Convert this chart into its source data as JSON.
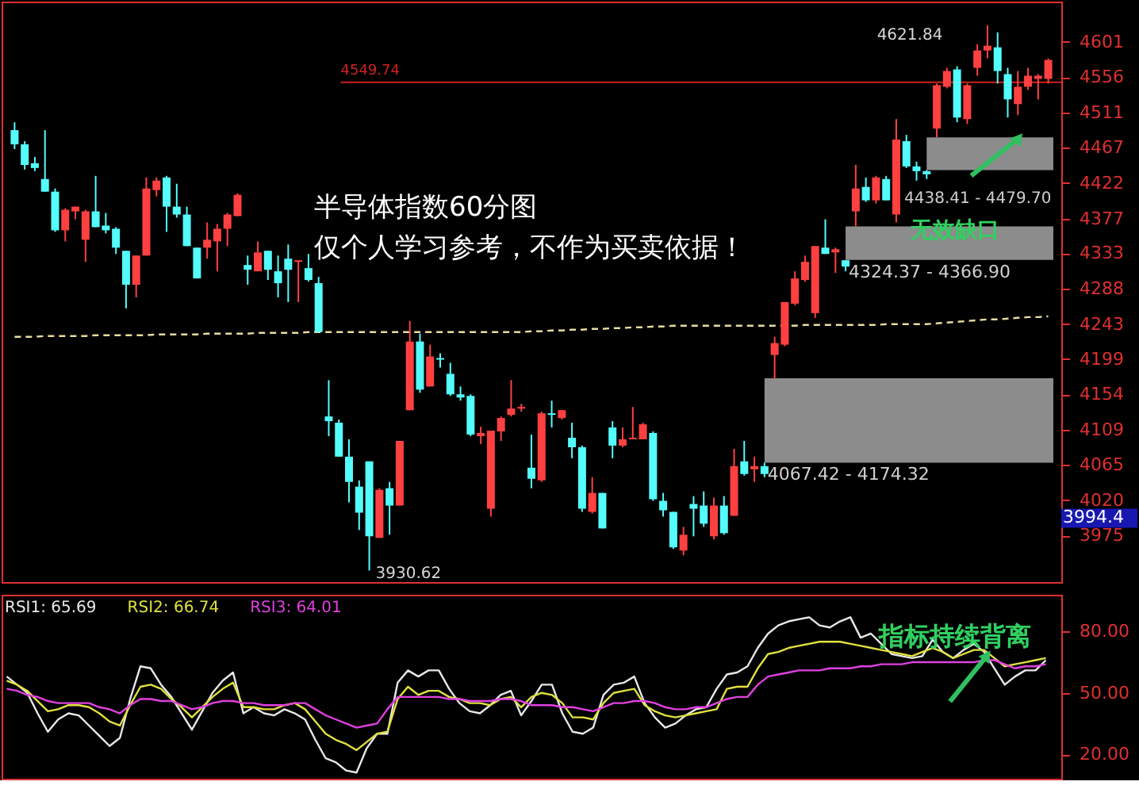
{
  "chart_data": [
    {
      "type": "candlestick",
      "categories": [
        null,
        null,
        null,
        null,
        null,
        null,
        null,
        null,
        null,
        null,
        null,
        null,
        null,
        null,
        null,
        null,
        null,
        null,
        null,
        null,
        null,
        null,
        null,
        null,
        null,
        null,
        null,
        null,
        null,
        null,
        null,
        null,
        null,
        null,
        null,
        null,
        null,
        null,
        null,
        null,
        null,
        null,
        null,
        null,
        null,
        null,
        null,
        null,
        null,
        null,
        null,
        null,
        null,
        null,
        null,
        null,
        null,
        null,
        null,
        null,
        null,
        null,
        null,
        null,
        null,
        null,
        null,
        null,
        null,
        null,
        null,
        null,
        null,
        null,
        null,
        null,
        null,
        null,
        null,
        null,
        null,
        null,
        null,
        null,
        null,
        null,
        null,
        null,
        null,
        null,
        null,
        null,
        null,
        null,
        null,
        null,
        null,
        null,
        null,
        null,
        null,
        null,
        null
      ],
      "ohlc": [
        [
          4489,
          4499,
          4465,
          4471
        ],
        [
          4471,
          4475,
          4439,
          4445
        ],
        [
          4447,
          4455,
          4437,
          4441
        ],
        [
          4427,
          4489,
          4411,
          4411
        ],
        [
          4411,
          4415,
          4360,
          4362
        ],
        [
          4362,
          4390,
          4348,
          4388
        ],
        [
          4386,
          4392,
          4376,
          4392
        ],
        [
          4350,
          4388,
          4322,
          4386
        ],
        [
          4386,
          4431,
          4366,
          4366
        ],
        [
          4368,
          4384,
          4358,
          4362
        ],
        [
          4364,
          4366,
          4332,
          4340
        ],
        [
          4336,
          4336,
          4263,
          4293
        ],
        [
          4293,
          4330,
          4277,
          4330
        ],
        [
          4330,
          4429,
          4330,
          4415
        ],
        [
          4413,
          4429,
          4405,
          4425
        ],
        [
          4429,
          4431,
          4360,
          4392
        ],
        [
          4392,
          4421,
          4378,
          4382
        ],
        [
          4382,
          4392,
          4342,
          4342
        ],
        [
          4340,
          4340,
          4301,
          4301
        ],
        [
          4340,
          4372,
          4326,
          4350
        ],
        [
          4348,
          4370,
          4310,
          4364
        ],
        [
          4364,
          4384,
          4342,
          4382
        ],
        [
          4380,
          4409,
          4380,
          4407
        ],
        [
          4318,
          4330,
          4293,
          4312
        ],
        [
          4310,
          4348,
          4310,
          4334
        ],
        [
          4336,
          4336,
          4299,
          4312
        ],
        [
          4310,
          4330,
          4277,
          4295
        ],
        [
          4326,
          4344,
          4271,
          4312
        ],
        [
          4322,
          4324,
          4271,
          4324
        ],
        [
          4314,
          4332,
          4297,
          4299
        ],
        [
          4295,
          4303,
          4233,
          4233
        ],
        [
          4126,
          4172,
          4101,
          4120
        ],
        [
          4118,
          4122,
          4075,
          4075
        ],
        [
          4075,
          4097,
          4017,
          4043
        ],
        [
          4037,
          4045,
          3982,
          4004
        ],
        [
          4069,
          4069,
          3930.62,
          3974
        ],
        [
          3972,
          4035,
          3972,
          4033
        ],
        [
          4035,
          4043,
          3976,
          4013
        ],
        [
          4013,
          4095,
          4013,
          4095
        ],
        [
          4134,
          4247,
          4134,
          4221
        ],
        [
          4221,
          4231,
          4156,
          4160
        ],
        [
          4164,
          4217,
          4164,
          4202
        ],
        [
          4200,
          4206,
          4188,
          4198
        ],
        [
          4180,
          4194,
          4152,
          4154
        ],
        [
          4154,
          4164,
          4146,
          4150
        ],
        [
          4152,
          4154,
          4101,
          4103
        ],
        [
          4101,
          4113,
          4091,
          4105
        ],
        [
          4009,
          4108,
          3999,
          4108
        ],
        [
          4107,
          4126,
          4095,
          4124
        ],
        [
          4128,
          4172,
          4126,
          4136
        ],
        [
          4136,
          4142,
          4132,
          4138
        ],
        [
          4061,
          4103,
          4035,
          4047
        ],
        [
          4045,
          4132,
          4043,
          4130
        ],
        [
          4130,
          4146,
          4112,
          4128
        ],
        [
          4124,
          4134,
          4122,
          4134
        ],
        [
          4099,
          4118,
          4073,
          4087
        ],
        [
          4087,
          4089,
          4005,
          4009
        ],
        [
          4005,
          4049,
          4003,
          4029
        ],
        [
          4029,
          4029,
          3984,
          3984
        ],
        [
          4112,
          4120,
          4073,
          4089
        ],
        [
          4089,
          4112,
          4087,
          4097
        ],
        [
          4097,
          4138,
          4097,
          4099
        ],
        [
          4097,
          4118,
          4097,
          4116
        ],
        [
          4105,
          4107,
          4019,
          4021
        ],
        [
          4019,
          4029,
          3999,
          4007
        ],
        [
          4005,
          4005,
          3958,
          3960
        ],
        [
          3956,
          3986,
          3950,
          3976
        ],
        [
          4015,
          4025,
          3974,
          4009
        ],
        [
          4013,
          4031,
          3986,
          3990
        ],
        [
          3974,
          4023,
          3970,
          4013
        ],
        [
          4013,
          4025,
          3976,
          3978
        ],
        [
          4000,
          4085,
          4000,
          4063
        ],
        [
          4069,
          4095,
          4051,
          4053
        ],
        [
          4059,
          4075,
          4043,
          4063
        ],
        [
          4063,
          4067.42,
          4049,
          4053
        ],
        [
          4204,
          4227,
          4174.32,
          4219
        ],
        [
          4217,
          4271,
          4215,
          4271
        ],
        [
          4269,
          4310,
          4267,
          4301
        ],
        [
          4299,
          4330,
          4297,
          4322
        ],
        [
          4257,
          4342,
          4251,
          4342
        ],
        [
          4340,
          4376,
          4332,
          4332
        ],
        [
          4334,
          4340,
          4308,
          4338
        ],
        [
          4324,
          4324.37,
          4310,
          4316
        ],
        [
          4386,
          4445,
          4366.9,
          4415
        ],
        [
          4417,
          4429,
          4398,
          4400
        ],
        [
          4400,
          4431,
          4396,
          4429
        ],
        [
          4427,
          4431,
          4400,
          4400
        ],
        [
          4382,
          4503,
          4372,
          4477
        ],
        [
          4475,
          4483,
          4441,
          4443
        ],
        [
          4443,
          4449,
          4425,
          4437
        ],
        [
          4437,
          4438.41,
          4427,
          4433
        ],
        [
          4491,
          4548,
          4479.7,
          4546
        ],
        [
          4544,
          4568,
          4542,
          4564
        ],
        [
          4566,
          4570,
          4499,
          4505
        ],
        [
          4503,
          4548,
          4497,
          4546
        ],
        [
          4568,
          4598,
          4558,
          4590
        ],
        [
          4590,
          4621.84,
          4580,
          4596
        ],
        [
          4594,
          4613,
          4548,
          4564
        ],
        [
          4560,
          4568,
          4505,
          4528
        ],
        [
          4522,
          4564,
          4508,
          4544
        ],
        [
          4544,
          4568,
          4540,
          4558
        ],
        [
          4554,
          4560,
          4528,
          4558
        ],
        [
          4554,
          4580,
          4548,
          4578
        ]
      ],
      "series": [
        {
          "type": "line",
          "color": "#e8dca0",
          "line_style": "dashed",
          "values": [
            4227,
            4227,
            4227,
            4228,
            4228,
            4228,
            4228,
            4228,
            4229,
            4229,
            4229,
            4229,
            4229,
            4229,
            4230,
            4230,
            4230,
            4230,
            4230,
            4231,
            4231,
            4231,
            4231,
            4231,
            4232,
            4232,
            4232,
            4232,
            4232,
            4233,
            4233,
            4233,
            4233,
            4233,
            4233,
            4233,
            4233,
            4233,
            4233,
            4233,
            4233,
            4233,
            4233,
            4233,
            4233,
            4233,
            4233,
            4233,
            4233,
            4233,
            4233,
            4234,
            4234,
            4235,
            4235,
            4236,
            4236,
            4237,
            4237,
            4238,
            4238,
            4239,
            4239,
            4240,
            4240,
            4241,
            4241,
            4241,
            4241,
            4241,
            4241,
            4241,
            4241,
            4241,
            4241,
            4241,
            4241,
            4241,
            4242,
            4242,
            4242,
            4242,
            4242,
            4242,
            4242,
            4242,
            4243,
            4243,
            4243,
            4243,
            4243,
            4244,
            4245,
            4246,
            4247,
            4248,
            4249,
            4249,
            4250,
            4251,
            4252,
            4252,
            4253
          ]
        }
      ],
      "ylim": [
        3916,
        4652
      ],
      "yticks": [
        3975,
        4020,
        4065,
        4109,
        4154,
        4199,
        4243,
        4288,
        4333,
        4377,
        4422,
        4467,
        4511,
        4556,
        4601
      ],
      "ref_lines": [
        {
          "axis": "y",
          "value": 4549.74,
          "label": "4549.74",
          "color": "#d02020"
        }
      ],
      "bands": [
        {
          "axis": "y",
          "from": 4067.42,
          "to": 4174.32,
          "label": "4067.42 - 4174.32",
          "color": "#8c8c8c"
        },
        {
          "axis": "y",
          "from": 4324.37,
          "to": 4366.9,
          "label": "4324.37 - 4366.90",
          "color": "#8c8c8c"
        },
        {
          "axis": "y",
          "from": 4438.41,
          "to": 4479.7,
          "label": "4438.41 - 4479.70",
          "color": "#8c8c8c"
        }
      ],
      "annotations": [
        "半导体指数60分图",
        "仅个人学习参考，不作为买卖依据！",
        "无效缺口",
        "4621.84",
        "3930.62",
        "3994.4"
      ],
      "grid": false,
      "tick_labels": "y"
    },
    {
      "type": "line",
      "categories": [
        null,
        null,
        null,
        null,
        null,
        null,
        null,
        null,
        null,
        null,
        null,
        null,
        null,
        null,
        null,
        null,
        null,
        null,
        null,
        null,
        null,
        null,
        null,
        null,
        null,
        null,
        null,
        null,
        null,
        null,
        null,
        null,
        null,
        null,
        null,
        null,
        null,
        null,
        null,
        null,
        null,
        null,
        null,
        null,
        null,
        null,
        null,
        null,
        null,
        null,
        null,
        null,
        null,
        null,
        null,
        null,
        null,
        null,
        null,
        null,
        null,
        null,
        null,
        null,
        null,
        null,
        null,
        null,
        null,
        null,
        null,
        null,
        null,
        null,
        null,
        null,
        null,
        null,
        null,
        null,
        null,
        null,
        null,
        null,
        null,
        null,
        null,
        null,
        null,
        null,
        null,
        null,
        null,
        null,
        null,
        null,
        null,
        null,
        null,
        null,
        null,
        null,
        null
      ],
      "series": [
        {
          "name": "RSI1: 65.69",
          "color": "#e8e8e8",
          "values": [
            58,
            54,
            50,
            40,
            31,
            37,
            40,
            39,
            34,
            29,
            24,
            28,
            47,
            63,
            62,
            54,
            48,
            40,
            32,
            41,
            50,
            56,
            60,
            40,
            43,
            40,
            39,
            42,
            40,
            37,
            27,
            18,
            16,
            12,
            11,
            23,
            30,
            30,
            55,
            61,
            58,
            61,
            61,
            52,
            45,
            41,
            40,
            44,
            49,
            51,
            39,
            46,
            54,
            54,
            40,
            31,
            30,
            33,
            49,
            54,
            55,
            58,
            45,
            38,
            33,
            35,
            39,
            42,
            43,
            52,
            59,
            60,
            63,
            72,
            79,
            83,
            85,
            86,
            87,
            83,
            82,
            85,
            87,
            77,
            79,
            74,
            69,
            68,
            67,
            68,
            76,
            70,
            67,
            71,
            74,
            70,
            62,
            54,
            58,
            61,
            61,
            66,
            null
          ]
        },
        {
          "name": "RSI2: 66.74",
          "color": "#e0e040",
          "values": [
            56,
            54,
            51,
            46,
            41,
            42,
            44,
            44,
            43,
            40,
            36,
            34,
            44,
            53,
            54,
            52,
            47,
            43,
            38,
            43,
            48,
            52,
            55,
            43,
            43,
            42,
            42,
            44,
            45,
            42,
            36,
            30,
            27,
            25,
            22,
            26,
            30,
            31,
            47,
            53,
            49,
            51,
            51,
            48,
            47,
            45,
            45,
            44,
            47,
            48,
            43,
            48,
            50,
            49,
            45,
            38,
            38,
            37,
            45,
            50,
            51,
            52,
            44,
            41,
            39,
            38,
            39,
            40,
            41,
            42,
            52,
            53,
            53,
            62,
            69,
            70,
            72,
            73,
            74,
            75,
            75,
            75,
            74,
            73,
            72,
            71,
            70,
            69,
            68,
            70,
            72,
            70,
            67,
            69,
            71,
            71,
            67,
            63,
            64,
            65,
            66,
            67,
            null
          ]
        },
        {
          "name": "RSI3: 64.01",
          "color": "#e040e0",
          "values": [
            52,
            51,
            49,
            48,
            46,
            45,
            45,
            45,
            45,
            43,
            42,
            40,
            44,
            47,
            47,
            46,
            46,
            44,
            42,
            43,
            45,
            46,
            46,
            45,
            45,
            44,
            44,
            44,
            45,
            45,
            42,
            39,
            37,
            35,
            33,
            34,
            35,
            42,
            48,
            48,
            48,
            48,
            48,
            47,
            47,
            46,
            46,
            46,
            47,
            47,
            46,
            44,
            44,
            44,
            43,
            43,
            42,
            41,
            43,
            45,
            45,
            46,
            46,
            45,
            43,
            42,
            42,
            43,
            43,
            45,
            47,
            48,
            48,
            54,
            58,
            59,
            60,
            61,
            61,
            61,
            62,
            62,
            62,
            63,
            63,
            64,
            64,
            64,
            65,
            65,
            65,
            65,
            65,
            65,
            65,
            66,
            66,
            64,
            62,
            63,
            63,
            64,
            null
          ]
        }
      ],
      "ylim": [
        8,
        98
      ],
      "yticks": [
        {
          "value": 20,
          "label": "20.00"
        },
        {
          "value": 50,
          "label": "50.00"
        },
        {
          "value": 80,
          "label": "80.00"
        }
      ],
      "annotations": [
        "指标持续背离"
      ],
      "grid": false,
      "tick_labels": "y"
    }
  ]
}
